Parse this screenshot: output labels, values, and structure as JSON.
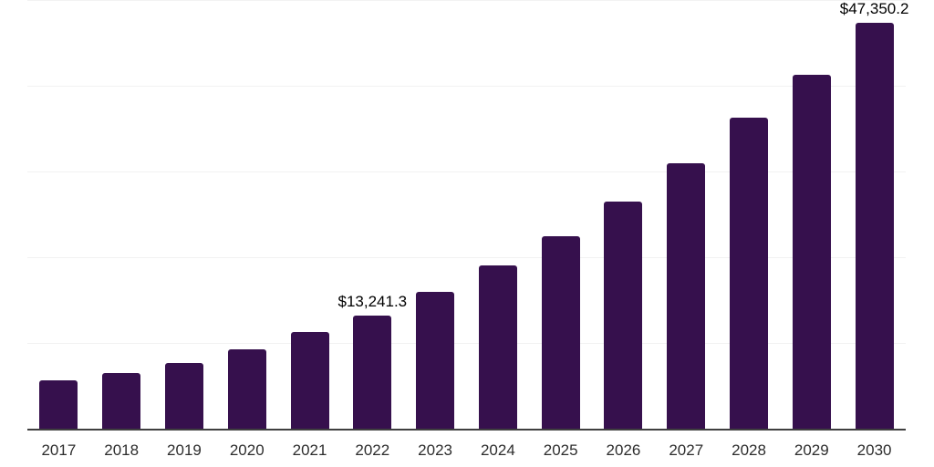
{
  "chart_data": {
    "type": "bar",
    "title": "",
    "xlabel": "",
    "ylabel": "",
    "categories": [
      "2017",
      "2018",
      "2019",
      "2020",
      "2021",
      "2022",
      "2023",
      "2024",
      "2025",
      "2026",
      "2027",
      "2028",
      "2029",
      "2030"
    ],
    "values": [
      5590,
      6470,
      7680,
      9310,
      11250,
      13241.3,
      16000,
      19010,
      22490,
      26450,
      30990,
      36230,
      41330,
      47350.2
    ],
    "labeled_points": {
      "2022": "$13,241.3",
      "2030": "$47,350.2"
    },
    "ylim": [
      0,
      50000
    ],
    "gridline_interval": 10000,
    "grid_visible": true,
    "legend_position": "none",
    "colors": {
      "bar_fill": "#36104D",
      "axis_line": "#3F3F3F",
      "gridline": "#F2F2F2",
      "tick_label": "#2D2D2D",
      "data_label": "#000000",
      "background": "#FFFFFF"
    }
  }
}
